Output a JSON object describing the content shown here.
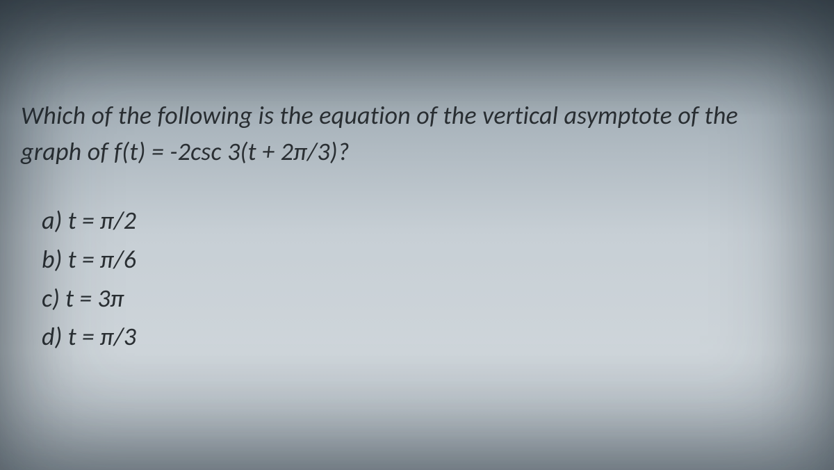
{
  "colors": {
    "text": "#2a2f33",
    "bg_top": "#5b646b",
    "bg_mid": "#c7cfd5",
    "bg_bottom": "#b7c0c7"
  },
  "typography": {
    "font_family": "Calibri / Segoe UI, italic",
    "question_fontsize_pt": 27,
    "option_fontsize_pt": 27
  },
  "question": {
    "line1": "Which of the following is the equation of the vertical asymptote of the",
    "line2": "graph of f(t) = -2csc 3(t + 2π/3)?"
  },
  "options": {
    "a": "a)  t = π/2",
    "b": "b)  t = π/6",
    "c": "c)  t = 3π",
    "d": "d)  t = π/3"
  }
}
